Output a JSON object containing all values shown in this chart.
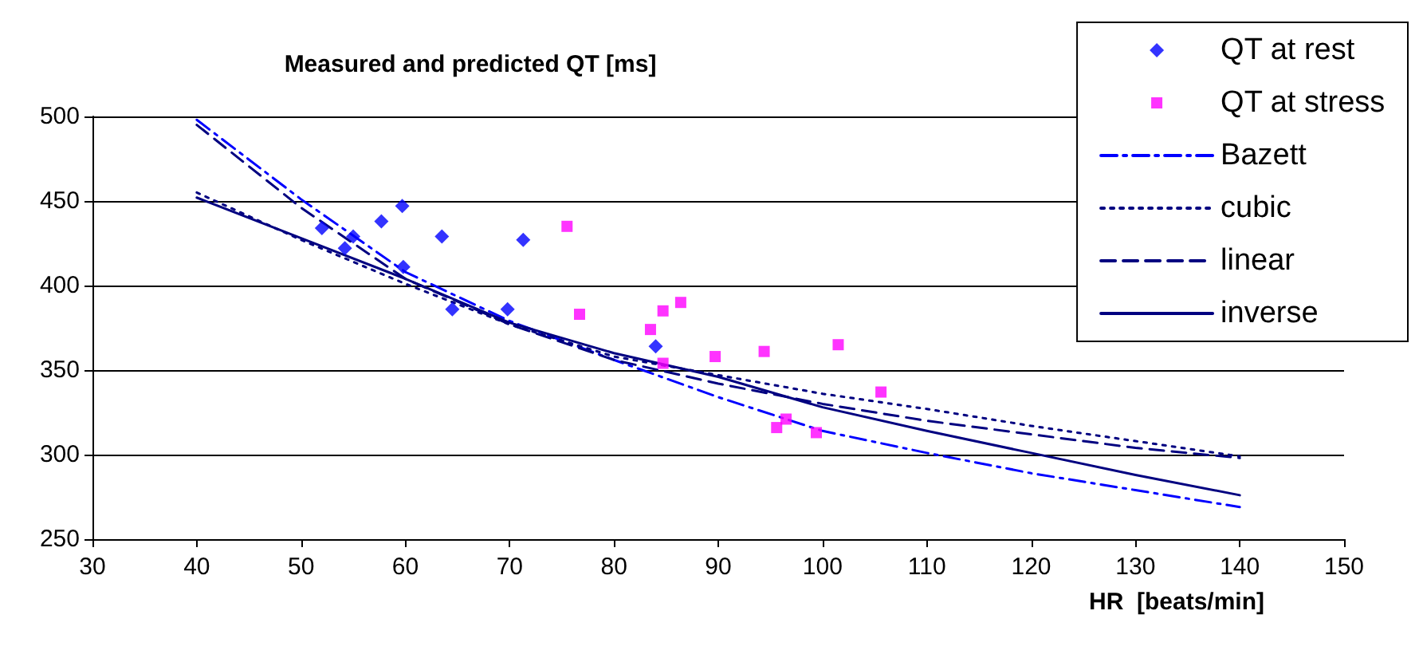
{
  "chart_data": {
    "type": "scatter",
    "title": "Measured and predicted QT [ms]",
    "xlabel": "HR  [beats/min]",
    "xlim": [
      30,
      150
    ],
    "xticks": [
      30,
      40,
      50,
      60,
      70,
      80,
      90,
      100,
      110,
      120,
      130,
      140,
      150
    ],
    "ylim": [
      250,
      500
    ],
    "yticks": [
      250,
      300,
      350,
      400,
      450,
      500
    ],
    "grid": "y",
    "legend": "top right",
    "series": [
      {
        "name": "QT at rest",
        "marker": "diamond",
        "color": "#0000ff",
        "x": [
          52.0,
          54.2,
          55.0,
          57.7,
          59.7,
          59.8,
          63.5,
          64.5,
          69.8,
          71.3,
          84.0
        ],
        "values": [
          434,
          422,
          429,
          438,
          447,
          411,
          429,
          386,
          386,
          427,
          364
        ]
      },
      {
        "name": "QT at stress",
        "marker": "square",
        "color": "#ff00ff",
        "x": [
          75.5,
          76.7,
          83.5,
          84.7,
          86.4,
          84.7,
          89.7,
          94.4,
          101.5,
          105.6,
          96.5,
          95.6,
          99.4
        ],
        "values": [
          435,
          383,
          374,
          385,
          390,
          354,
          358,
          361,
          365,
          337,
          321,
          316,
          313
        ]
      },
      {
        "name": "Bazett",
        "type": "line",
        "marker": "none",
        "line_style": "dashdot",
        "color": "#0000ff",
        "x": [
          40,
          50,
          60,
          70,
          80,
          90,
          100,
          110,
          120,
          130,
          140
        ],
        "values": [
          498,
          451,
          408,
          379,
          356,
          334,
          314,
          301,
          289,
          279,
          269
        ]
      },
      {
        "name": "cubic",
        "type": "line",
        "marker": "none",
        "line_style": "dotted",
        "color": "#000080",
        "x": [
          40,
          50,
          60,
          70,
          80,
          90,
          100,
          110,
          120,
          130,
          140
        ],
        "values": [
          455,
          427,
          401,
          377,
          358,
          347,
          336,
          327,
          317,
          308,
          299
        ]
      },
      {
        "name": "linear",
        "type": "line",
        "marker": "none",
        "line_style": "dashed",
        "color": "#000080",
        "x": [
          40,
          50,
          60,
          70,
          80,
          90,
          100,
          110,
          120,
          130,
          140
        ],
        "values": [
          495,
          446,
          404,
          377,
          356,
          342,
          330,
          320,
          312,
          304,
          298
        ]
      },
      {
        "name": "inverse",
        "type": "line",
        "marker": "none",
        "line_style": "solid",
        "color": "#000080",
        "x": [
          40,
          50,
          60,
          70,
          80,
          90,
          100,
          110,
          120,
          130,
          140
        ],
        "values": [
          452,
          428,
          404,
          378,
          360,
          346,
          328,
          314,
          301,
          288,
          276
        ]
      }
    ]
  }
}
